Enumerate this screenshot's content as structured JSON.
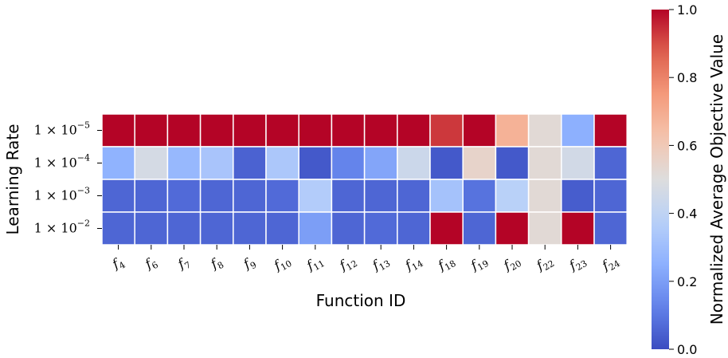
{
  "chart_data": {
    "type": "heatmap",
    "xlabel": "Function ID",
    "ylabel": "Learning Rate",
    "colorbar_label": "Normalized Average Objective Value",
    "colormap": "coolwarm",
    "vmin": 0.0,
    "vmax": 1.0,
    "colorbar_ticks": [
      "0.0",
      "0.2",
      "0.4",
      "0.6",
      "0.8",
      "1.0"
    ],
    "x_categories": [
      {
        "base": "f",
        "sub": "4"
      },
      {
        "base": "f",
        "sub": "6"
      },
      {
        "base": "f",
        "sub": "7"
      },
      {
        "base": "f",
        "sub": "8"
      },
      {
        "base": "f",
        "sub": "9"
      },
      {
        "base": "f",
        "sub": "10"
      },
      {
        "base": "f",
        "sub": "11"
      },
      {
        "base": "f",
        "sub": "12"
      },
      {
        "base": "f",
        "sub": "13"
      },
      {
        "base": "f",
        "sub": "14"
      },
      {
        "base": "f",
        "sub": "18"
      },
      {
        "base": "f",
        "sub": "19"
      },
      {
        "base": "f",
        "sub": "20"
      },
      {
        "base": "f",
        "sub": "22"
      },
      {
        "base": "f",
        "sub": "23"
      },
      {
        "base": "f",
        "sub": "24"
      }
    ],
    "y_categories": [
      {
        "mantissa": "1 × 10",
        "exp": "−5"
      },
      {
        "mantissa": "1 × 10",
        "exp": "−4"
      },
      {
        "mantissa": "1 × 10",
        "exp": "−3"
      },
      {
        "mantissa": "1 × 10",
        "exp": "−2"
      }
    ],
    "values": [
      [
        1.0,
        1.0,
        1.0,
        1.0,
        1.0,
        1.0,
        1.0,
        1.0,
        1.0,
        1.0,
        0.93,
        1.0,
        0.68,
        0.52,
        0.25,
        1.0
      ],
      [
        0.26,
        0.47,
        0.28,
        0.33,
        0.05,
        0.34,
        0.03,
        0.13,
        0.22,
        0.44,
        0.03,
        0.55,
        0.03,
        0.52,
        0.46,
        0.06
      ],
      [
        0.06,
        0.06,
        0.07,
        0.06,
        0.06,
        0.07,
        0.36,
        0.06,
        0.06,
        0.06,
        0.32,
        0.09,
        0.38,
        0.52,
        0.04,
        0.06
      ],
      [
        0.06,
        0.06,
        0.06,
        0.06,
        0.06,
        0.06,
        0.2,
        0.06,
        0.07,
        0.06,
        1.0,
        0.06,
        1.0,
        0.52,
        1.0,
        0.06
      ]
    ]
  }
}
